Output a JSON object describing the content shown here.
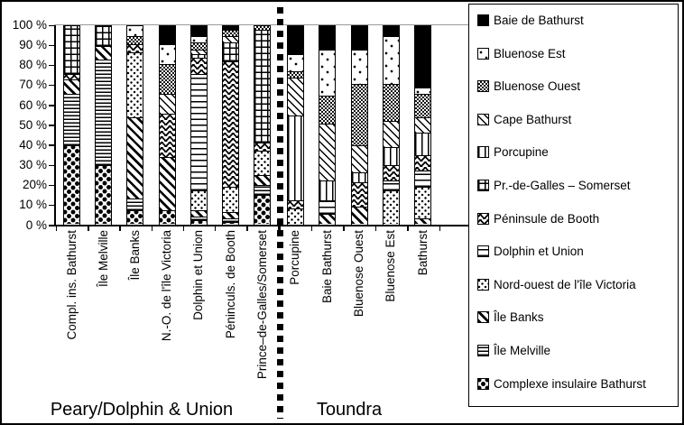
{
  "chart_data": {
    "type": "bar",
    "stacked": true,
    "unit": "%",
    "title": "",
    "xlabel": "",
    "ylabel": "",
    "ylim": [
      0,
      100
    ],
    "grid": "top-line-only",
    "y_ticks": [
      "100 %",
      "90 %",
      "80 %",
      "70 %",
      "60 %",
      "50 %",
      "40 %",
      "30 %",
      "20%",
      "10 %",
      "0 %"
    ],
    "groups": [
      {
        "label": "Peary/Dolphin & Union",
        "categories": [
          "Compl. ins. Bathurst",
          "Île Melville",
          "Île Banks",
          "N.-O. de l'île Victoria",
          "Dolphin et Union",
          "Péninculs. de Booth",
          "Prince–de-Galles/Somerset"
        ]
      },
      {
        "label": "Toundra",
        "categories": [
          "Porcupine",
          "Baie Bathurst",
          "Bluenose Ouest",
          "Bluenose Est",
          "Bathurst"
        ]
      }
    ],
    "series": [
      {
        "name": "Complexe insulaire Bathurst",
        "key": "complexe",
        "pattern": "coarse-black-dots",
        "values": [
          40,
          30,
          7,
          7,
          2,
          1,
          15,
          0,
          0,
          0,
          0,
          0
        ]
      },
      {
        "name": "Île Melville",
        "key": "melville",
        "pattern": "dense-horizontal-lines",
        "values": [
          26,
          53,
          6,
          0,
          2,
          2,
          5,
          0,
          0,
          0,
          0,
          0
        ]
      },
      {
        "name": "Île Banks",
        "key": "banks",
        "pattern": "bold-diagonal-stripes",
        "values": [
          7,
          7,
          41,
          27,
          3,
          3,
          5,
          0,
          5,
          9,
          0,
          3
        ]
      },
      {
        "name": "Nord-ouest de l'île Victoria",
        "key": "nwvic",
        "pattern": "fine-dot-grid",
        "values": [
          0,
          0,
          33,
          0,
          10,
          13,
          12,
          8,
          0,
          0,
          17,
          16
        ]
      },
      {
        "name": "Dolphin et Union",
        "key": "dolphin",
        "pattern": "sparse-horizontal-lines",
        "values": [
          0,
          0,
          0,
          0,
          59,
          0,
          0,
          0,
          7,
          0,
          5,
          8
        ]
      },
      {
        "name": "Péninsule de Booth",
        "key": "booth",
        "pattern": "zigzag-chevron",
        "values": [
          3,
          0,
          4,
          22,
          8,
          63,
          4,
          4,
          0,
          12,
          8,
          8
        ]
      },
      {
        "name": "Pr.-de-Galles – Somerset",
        "key": "prgalles",
        "pattern": "grid-crosshatch",
        "values": [
          24,
          10,
          0,
          0,
          0,
          10,
          57,
          0,
          0,
          0,
          0,
          0
        ]
      },
      {
        "name": "Porcupine",
        "key": "porcupine",
        "pattern": "vertical-lines",
        "values": [
          0,
          0,
          0,
          0,
          2,
          0,
          0,
          43,
          10,
          5,
          9,
          11
        ]
      },
      {
        "name": "Cape Bathurst",
        "key": "cape",
        "pattern": "thin-diagonal-lines",
        "values": [
          0,
          0,
          0,
          10,
          2,
          3,
          0,
          19,
          29,
          14,
          13,
          8
        ]
      },
      {
        "name": "Bluenose Ouest",
        "key": "blueouest",
        "pattern": "fine-checkerboard",
        "values": [
          0,
          0,
          4,
          15,
          4,
          3,
          2,
          3,
          14,
          31,
          19,
          12
        ]
      },
      {
        "name": "Bluenose Est",
        "key": "blueest",
        "pattern": "white-sparse-dots",
        "values": [
          0,
          0,
          5,
          10,
          3,
          0,
          0,
          9,
          23,
          17,
          24,
          3
        ]
      },
      {
        "name": "Baie de Bathurst",
        "key": "baie",
        "pattern": "solid-black",
        "values": [
          0,
          0,
          0,
          9,
          5,
          2,
          0,
          14,
          12,
          12,
          5,
          31
        ]
      }
    ],
    "legend": {
      "position": "right",
      "items": [
        {
          "label": "Baie de Bathurst",
          "key": "baie"
        },
        {
          "label": "Bluenose Est",
          "key": "blueest"
        },
        {
          "label": "Bluenose Ouest",
          "key": "blueouest"
        },
        {
          "label": "Cape Bathurst",
          "key": "cape"
        },
        {
          "label": "Porcupine",
          "key": "porcupine"
        },
        {
          "label": "Pr.-de-Galles – Somerset",
          "key": "prgalles"
        },
        {
          "label": "Péninsule de Booth",
          "key": "booth"
        },
        {
          "label": "Dolphin et Union",
          "key": "dolphin"
        },
        {
          "label": "Nord-ouest de l'île Victoria",
          "key": "nwvic"
        },
        {
          "label": "Île Banks",
          "key": "banks"
        },
        {
          "label": "Île Melville",
          "key": "melville"
        },
        {
          "label": "Complexe insulaire Bathurst",
          "key": "complexe"
        }
      ]
    }
  },
  "colors": {
    "foreground": "#000000",
    "background": "#ffffff",
    "top_gridline": "#9a9a9a"
  }
}
